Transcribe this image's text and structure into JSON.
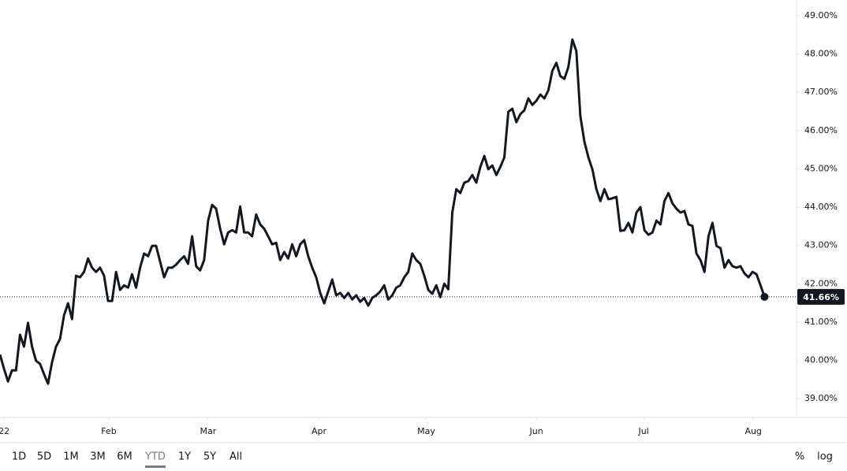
{
  "chart_data": {
    "type": "line",
    "series": [
      {
        "color": "#131722",
        "values": [
          40.15,
          39.78,
          39.45,
          39.74,
          39.74,
          40.67,
          40.36,
          40.98,
          40.36,
          39.99,
          39.91,
          39.64,
          39.39,
          39.95,
          40.36,
          40.56,
          41.18,
          41.49,
          41.08,
          42.21,
          42.17,
          42.31,
          42.66,
          42.42,
          42.31,
          42.42,
          42.21,
          41.55,
          41.55,
          42.31,
          41.84,
          41.96,
          41.9,
          42.25,
          41.9,
          42.42,
          42.79,
          42.72,
          42.99,
          42.99,
          42.58,
          42.17,
          42.42,
          42.42,
          42.5,
          42.62,
          42.72,
          42.52,
          43.24,
          42.46,
          42.35,
          42.62,
          43.65,
          44.06,
          43.96,
          43.44,
          43.03,
          43.34,
          43.4,
          43.34,
          44.02,
          43.34,
          43.34,
          43.24,
          43.81,
          43.55,
          43.44,
          43.24,
          43.03,
          43.07,
          42.62,
          42.83,
          42.66,
          43.03,
          42.72,
          43.03,
          43.14,
          42.72,
          42.42,
          42.17,
          41.76,
          41.49,
          41.8,
          42.11,
          41.7,
          41.76,
          41.63,
          41.76,
          41.59,
          41.7,
          41.53,
          41.63,
          41.43,
          41.63,
          41.7,
          41.8,
          41.96,
          41.59,
          41.7,
          41.9,
          41.96,
          42.17,
          42.31,
          42.79,
          42.62,
          42.52,
          42.21,
          41.84,
          41.74,
          41.96,
          41.65,
          42.0,
          41.86,
          43.86,
          44.47,
          44.37,
          44.64,
          44.68,
          44.84,
          44.64,
          45.05,
          45.34,
          44.99,
          45.09,
          44.84,
          45.05,
          45.3,
          46.49,
          46.57,
          46.22,
          46.43,
          46.53,
          46.84,
          46.67,
          46.78,
          46.94,
          46.84,
          47.05,
          47.56,
          47.77,
          47.42,
          47.35,
          47.66,
          48.38,
          48.07,
          46.37,
          45.71,
          45.3,
          44.99,
          44.47,
          44.16,
          44.47,
          44.21,
          44.23,
          44.27,
          43.38,
          43.4,
          43.59,
          43.34,
          43.86,
          44.0,
          43.4,
          43.28,
          43.34,
          43.65,
          43.55,
          44.16,
          44.37,
          44.1,
          43.96,
          43.86,
          43.9,
          43.55,
          43.51,
          42.79,
          42.62,
          42.31,
          43.24,
          43.59,
          42.99,
          42.93,
          42.42,
          42.62,
          42.46,
          42.42,
          42.46,
          42.27,
          42.17,
          42.31,
          42.25,
          41.96,
          41.66
        ]
      }
    ],
    "xlim": [
      0,
      199
    ],
    "xticks": [
      {
        "value": 1,
        "label": "22"
      },
      {
        "value": 27.2,
        "label": "Feb"
      },
      {
        "value": 52,
        "label": "Mar"
      },
      {
        "value": 79.7,
        "label": "Apr"
      },
      {
        "value": 106.5,
        "label": "May"
      },
      {
        "value": 134,
        "label": "Jun"
      },
      {
        "value": 160.8,
        "label": "Jul"
      },
      {
        "value": 188.2,
        "label": "Aug"
      }
    ],
    "ylim": [
      38.51,
      49.41
    ],
    "yticks": [
      {
        "value": 39,
        "label": "39.00%"
      },
      {
        "value": 40,
        "label": "40.00%"
      },
      {
        "value": 41,
        "label": "41.00%"
      },
      {
        "value": 42,
        "label": "42.00%"
      },
      {
        "value": 43,
        "label": "43.00%"
      },
      {
        "value": 44,
        "label": "44.00%"
      },
      {
        "value": 45,
        "label": "45.00%"
      },
      {
        "value": 46,
        "label": "46.00%"
      },
      {
        "value": 47,
        "label": "47.00%"
      },
      {
        "value": 48,
        "label": "48.00%"
      },
      {
        "value": 49,
        "label": "49.00%"
      }
    ],
    "price_line": {
      "value": 41.66,
      "label": "41.66%"
    },
    "grid": false,
    "log_scale": false
  },
  "toolbar": {
    "ranges": [
      "1D",
      "5D",
      "1M",
      "3M",
      "6M",
      "YTD",
      "1Y",
      "5Y",
      "All"
    ],
    "selected": "YTD",
    "scale_buttons": [
      "%",
      "log"
    ]
  }
}
